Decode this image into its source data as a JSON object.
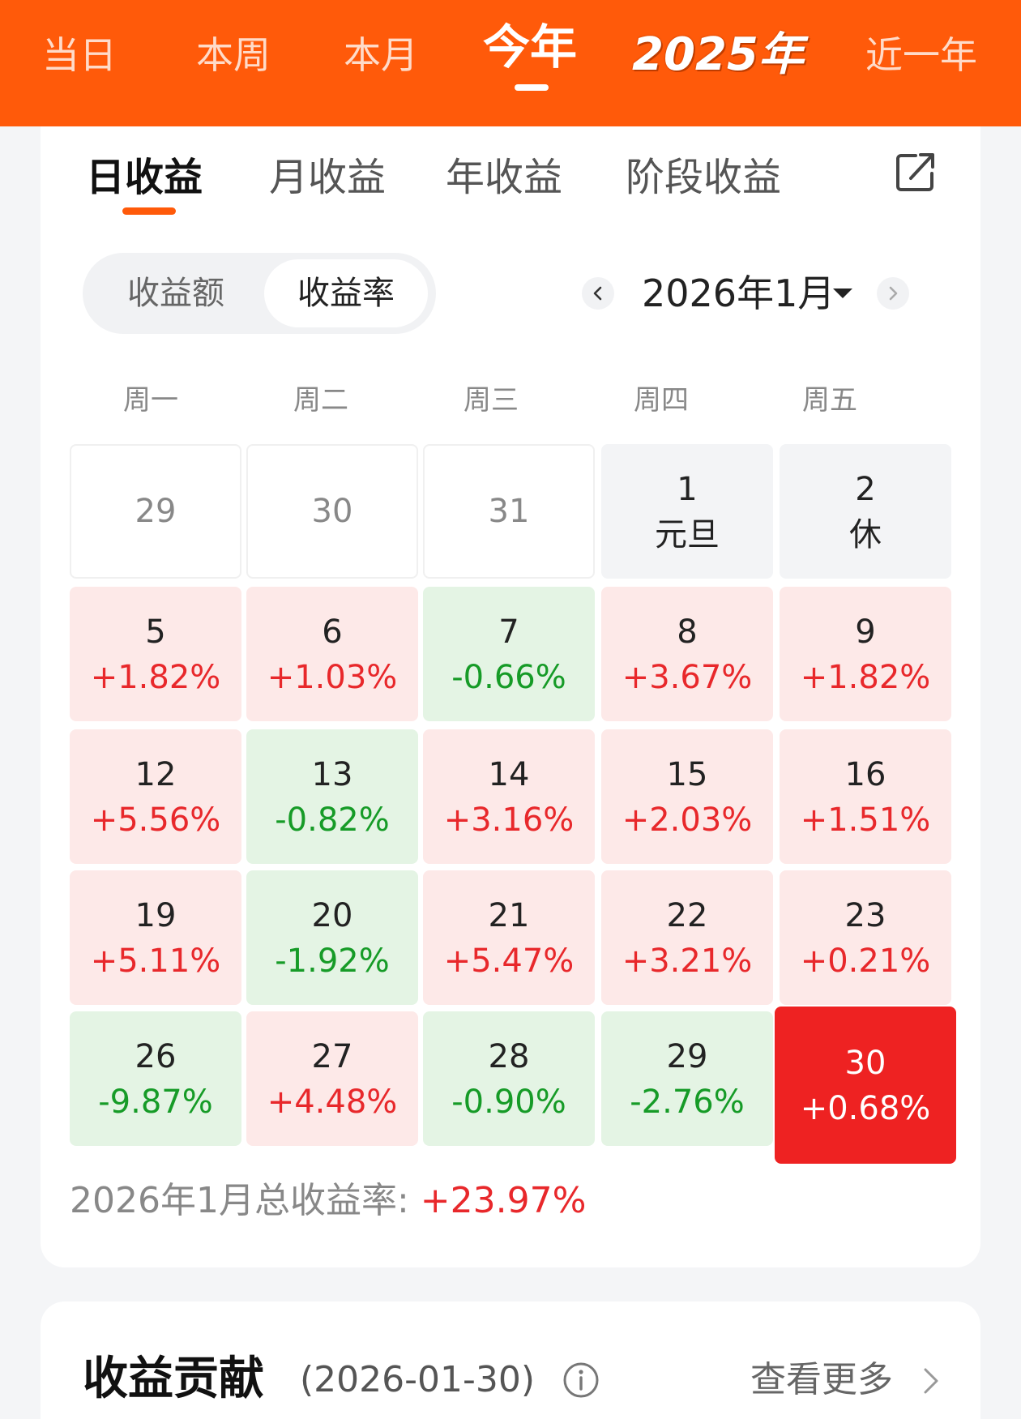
{
  "top_tabs": [
    "当日",
    "本周",
    "本月",
    "今年",
    "2025年",
    "近一年"
  ],
  "sub_tabs": [
    "日收益",
    "月收益",
    "年收益",
    "阶段收益"
  ],
  "segment": {
    "amount": "收益额",
    "rate": "收益率"
  },
  "month": {
    "label": "2026年1月"
  },
  "weekdays": [
    "周一",
    "周二",
    "周三",
    "周四",
    "周五"
  ],
  "calendar": {
    "rows": [
      [
        {
          "day": "29",
          "value": "",
          "state": "prev"
        },
        {
          "day": "30",
          "value": "",
          "state": "prev"
        },
        {
          "day": "31",
          "value": "",
          "state": "prev"
        },
        {
          "day": "1",
          "value": "元旦",
          "state": "holiday"
        },
        {
          "day": "2",
          "value": "休",
          "state": "holiday"
        }
      ],
      [
        {
          "day": "5",
          "value": "+1.82%",
          "state": "up"
        },
        {
          "day": "6",
          "value": "+1.03%",
          "state": "up"
        },
        {
          "day": "7",
          "value": "-0.66%",
          "state": "down"
        },
        {
          "day": "8",
          "value": "+3.67%",
          "state": "up"
        },
        {
          "day": "9",
          "value": "+1.82%",
          "state": "up"
        }
      ],
      [
        {
          "day": "12",
          "value": "+5.56%",
          "state": "up"
        },
        {
          "day": "13",
          "value": "-0.82%",
          "state": "down"
        },
        {
          "day": "14",
          "value": "+3.16%",
          "state": "up"
        },
        {
          "day": "15",
          "value": "+2.03%",
          "state": "up"
        },
        {
          "day": "16",
          "value": "+1.51%",
          "state": "up"
        }
      ],
      [
        {
          "day": "19",
          "value": "+5.11%",
          "state": "up"
        },
        {
          "day": "20",
          "value": "-1.92%",
          "state": "down"
        },
        {
          "day": "21",
          "value": "+5.47%",
          "state": "up"
        },
        {
          "day": "22",
          "value": "+3.21%",
          "state": "up"
        },
        {
          "day": "23",
          "value": "+0.21%",
          "state": "up"
        }
      ],
      [
        {
          "day": "26",
          "value": "-9.87%",
          "state": "down"
        },
        {
          "day": "27",
          "value": "+4.48%",
          "state": "up"
        },
        {
          "day": "28",
          "value": "-0.90%",
          "state": "down"
        },
        {
          "day": "29",
          "value": "-2.76%",
          "state": "down"
        },
        {
          "day": "30",
          "value": "+0.68%",
          "state": "selected"
        }
      ]
    ]
  },
  "total": {
    "label": "2026年1月总收益率: ",
    "value": "+23.97%"
  },
  "contribution": {
    "title": "收益贡献",
    "date": "(2026-01-30)",
    "more": "查看更多"
  },
  "colors": {
    "brand": "#ff5a0a",
    "up": "#e8282b",
    "down": "#169b27",
    "selected": "#ee2222"
  },
  "icons": [
    "share-icon",
    "chevron-left-icon",
    "chevron-right-icon",
    "caret-down-icon",
    "info-icon",
    "chevron-right-icon"
  ]
}
